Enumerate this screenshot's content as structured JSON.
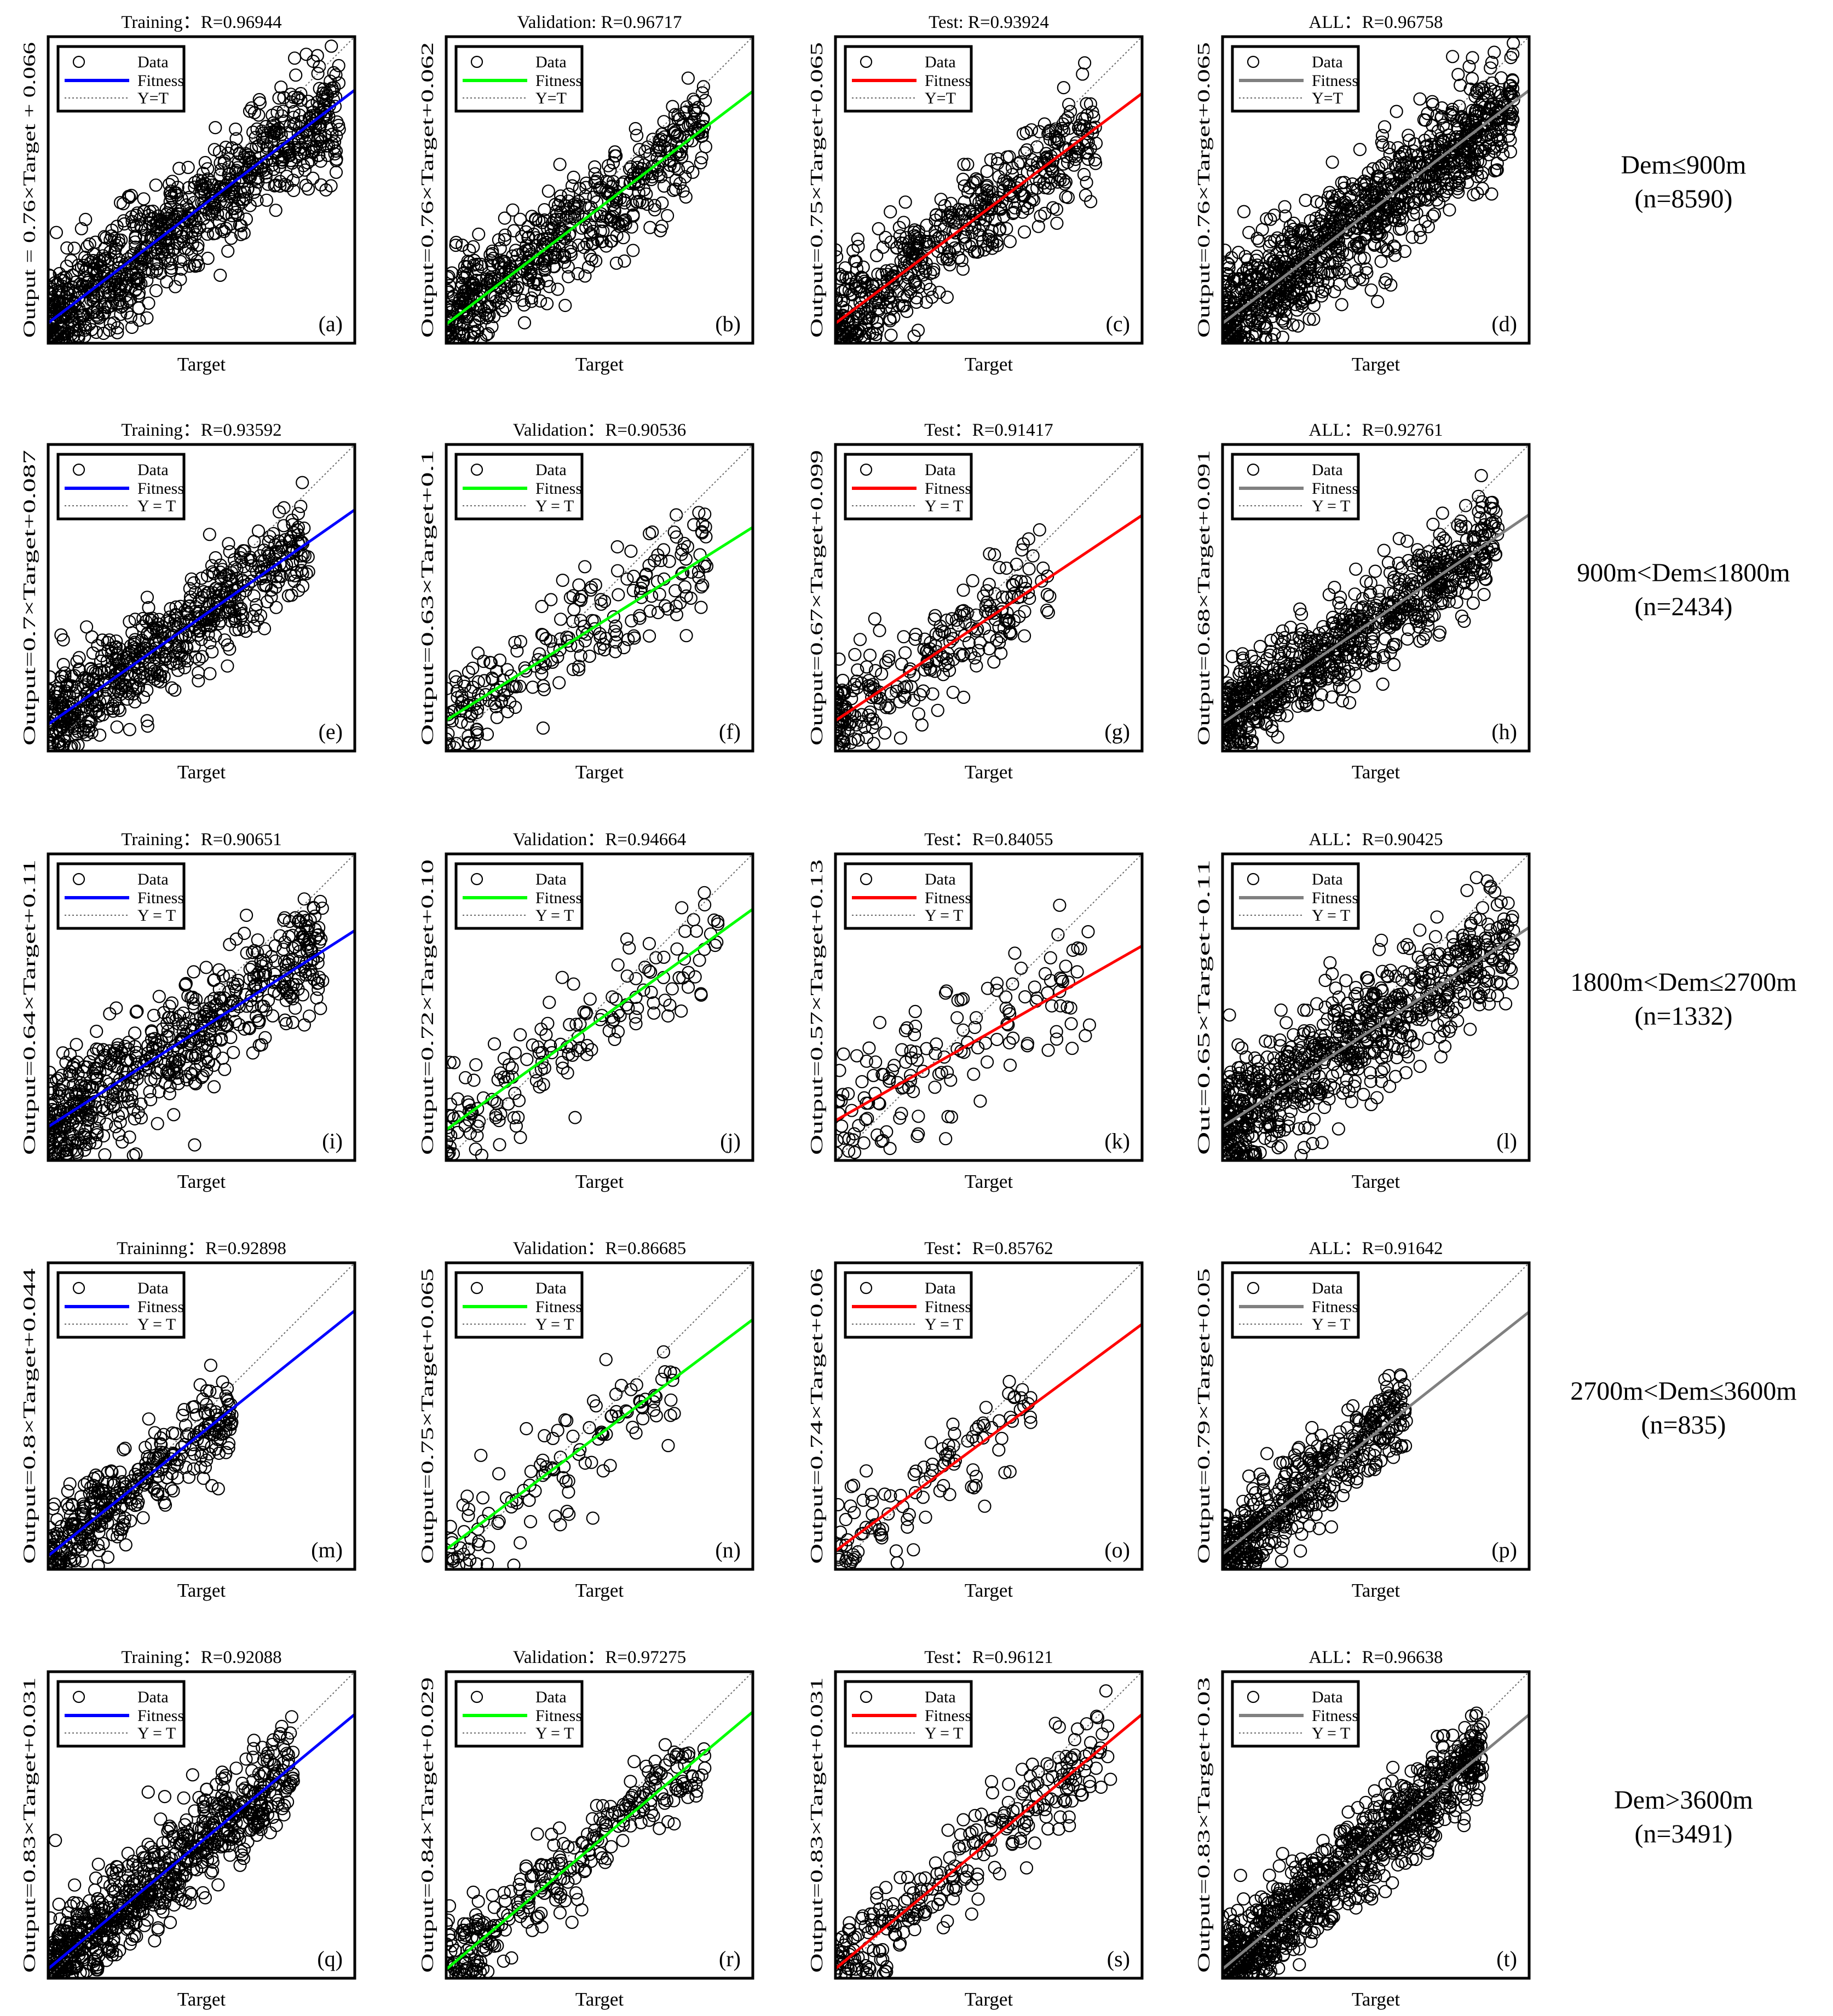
{
  "colors": {
    "training": "#0000ff",
    "validation": "#00ff00",
    "test": "#ff0000",
    "all": "#808080",
    "data_marker": "#000000",
    "identity_line": "#666666"
  },
  "legend": {
    "data": "Data",
    "fitness": "Fitness",
    "identity": "Y=T"
  },
  "rows": [
    {
      "label": "Dem≤900m",
      "count": "(n=8590)"
    },
    {
      "label": "900m<Dem≤1800m",
      "count": "(n=2434)"
    },
    {
      "label": "1800m<Dem≤2700m",
      "count": "(n=1332)"
    },
    {
      "label": "2700m<Dem≤3600m",
      "count": "(n=835)"
    },
    {
      "label": "Dem>3600m",
      "count": "(n=3491)"
    }
  ],
  "chart_data": [
    {
      "type": "scatter",
      "panel": "(a)",
      "title": "Training：R=0.96944",
      "xlabel": "Target",
      "ylabel": "Output = 0.76×Target + 0.066",
      "fit_color": "#0000ff",
      "legend_identity": "Y=T",
      "fit": {
        "slope": 0.76,
        "intercept": 0.066
      },
      "R": 0.96944,
      "xlim": [
        0,
        1
      ],
      "ylim": [
        0,
        1
      ],
      "n_points": 900,
      "spread": 0.09,
      "x_range": [
        0,
        0.95
      ],
      "seed": 11
    },
    {
      "type": "scatter",
      "panel": "(b)",
      "title": "Validation: R=0.96717",
      "xlabel": "Target",
      "ylabel": "Output=0.76×Target+0.062",
      "fit_color": "#00ff00",
      "legend_identity": "Y=T",
      "fit": {
        "slope": 0.76,
        "intercept": 0.062
      },
      "R": 0.96717,
      "xlim": [
        0,
        1
      ],
      "ylim": [
        0,
        1
      ],
      "n_points": 600,
      "spread": 0.085,
      "x_range": [
        0,
        0.85
      ],
      "seed": 12
    },
    {
      "type": "scatter",
      "panel": "(c)",
      "title": "Test: R=0.93924",
      "xlabel": "Target",
      "ylabel": "Output=0.75×Target+0.065",
      "fit_color": "#ff0000",
      "legend_identity": "Y=T",
      "fit": {
        "slope": 0.75,
        "intercept": 0.065
      },
      "R": 0.93924,
      "xlim": [
        0,
        1
      ],
      "ylim": [
        0,
        1
      ],
      "n_points": 550,
      "spread": 0.09,
      "x_range": [
        0,
        0.85
      ],
      "seed": 13
    },
    {
      "type": "scatter",
      "panel": "(d)",
      "title": "ALL：R=0.96758",
      "xlabel": "Target",
      "ylabel": "Output=0.76×Target+0.065",
      "fit_color": "#808080",
      "legend_identity": "Y=T",
      "fit": {
        "slope": 0.76,
        "intercept": 0.065
      },
      "R": 0.96758,
      "xlim": [
        0,
        1
      ],
      "ylim": [
        0,
        1
      ],
      "n_points": 1100,
      "spread": 0.09,
      "x_range": [
        0,
        0.95
      ],
      "seed": 14
    },
    {
      "type": "scatter",
      "panel": "(e)",
      "title": "Training：R=0.93592",
      "xlabel": "Target",
      "ylabel": "Output=0.7×Target+0.087",
      "fit_color": "#0000ff",
      "legend_identity": "Y = T",
      "fit": {
        "slope": 0.7,
        "intercept": 0.087
      },
      "R": 0.93592,
      "xlim": [
        0,
        1
      ],
      "ylim": [
        0,
        1
      ],
      "n_points": 650,
      "spread": 0.08,
      "x_range": [
        0,
        0.85
      ],
      "seed": 21
    },
    {
      "type": "scatter",
      "panel": "(f)",
      "title": "Validation：R=0.90536",
      "xlabel": "Target",
      "ylabel": "Output=0.63×Target+0.1",
      "fit_color": "#00ff00",
      "legend_identity": "Y = T",
      "fit": {
        "slope": 0.63,
        "intercept": 0.1
      },
      "R": 0.90536,
      "xlim": [
        0,
        1
      ],
      "ylim": [
        0,
        1
      ],
      "n_points": 230,
      "spread": 0.08,
      "x_range": [
        0,
        0.85
      ],
      "seed": 22
    },
    {
      "type": "scatter",
      "panel": "(g)",
      "title": "Test：R=0.91417",
      "xlabel": "Target",
      "ylabel": "Output=0.67×Target+0.099",
      "fit_color": "#ff0000",
      "legend_identity": "Y = T",
      "fit": {
        "slope": 0.67,
        "intercept": 0.099
      },
      "R": 0.91417,
      "xlim": [
        0,
        1
      ],
      "ylim": [
        0,
        1
      ],
      "n_points": 260,
      "spread": 0.08,
      "x_range": [
        0,
        0.7
      ],
      "seed": 23
    },
    {
      "type": "scatter",
      "panel": "(h)",
      "title": "ALL：R=0.92761",
      "xlabel": "Target",
      "ylabel": "Output=0.68×Target+0.091",
      "fit_color": "#808080",
      "legend_identity": "Y = T",
      "fit": {
        "slope": 0.68,
        "intercept": 0.091
      },
      "R": 0.92761,
      "xlim": [
        0,
        1
      ],
      "ylim": [
        0,
        1
      ],
      "n_points": 800,
      "spread": 0.08,
      "x_range": [
        0,
        0.9
      ],
      "seed": 24
    },
    {
      "type": "scatter",
      "panel": "(i)",
      "title": "Training：R=0.90651",
      "xlabel": "Target",
      "ylabel": "Output=0.64×Target+0.11",
      "fit_color": "#0000ff",
      "legend_identity": "Y = T",
      "fit": {
        "slope": 0.64,
        "intercept": 0.11
      },
      "R": 0.90651,
      "xlim": [
        0,
        1
      ],
      "ylim": [
        0,
        1
      ],
      "n_points": 650,
      "spread": 0.1,
      "x_range": [
        0,
        0.9
      ],
      "seed": 31
    },
    {
      "type": "scatter",
      "panel": "(j)",
      "title": "Validation：R=0.94664",
      "xlabel": "Target",
      "ylabel": "Output=0.72×Target+0.10",
      "fit_color": "#00ff00",
      "legend_identity": "Y = T",
      "fit": {
        "slope": 0.72,
        "intercept": 0.1
      },
      "R": 0.94664,
      "xlim": [
        0,
        1
      ],
      "ylim": [
        0,
        1
      ],
      "n_points": 170,
      "spread": 0.09,
      "x_range": [
        0,
        0.9
      ],
      "seed": 32
    },
    {
      "type": "scatter",
      "panel": "(k)",
      "title": "Test：R=0.84055",
      "xlabel": "Target",
      "ylabel": "Output=0.57×Target+0.13",
      "fit_color": "#ff0000",
      "legend_identity": "Y = T",
      "fit": {
        "slope": 0.57,
        "intercept": 0.13
      },
      "R": 0.84055,
      "xlim": [
        0,
        1
      ],
      "ylim": [
        0,
        1
      ],
      "n_points": 150,
      "spread": 0.11,
      "x_range": [
        0,
        0.85
      ],
      "seed": 33
    },
    {
      "type": "scatter",
      "panel": "(l)",
      "title": "ALL：R=0.90425",
      "xlabel": "Target",
      "ylabel": "Out=0.65×Target+0.11",
      "fit_color": "#808080",
      "legend_identity": "Y = T",
      "fit": {
        "slope": 0.65,
        "intercept": 0.11
      },
      "R": 0.90425,
      "xlim": [
        0,
        1
      ],
      "ylim": [
        0,
        1
      ],
      "n_points": 800,
      "spread": 0.1,
      "x_range": [
        0,
        0.95
      ],
      "seed": 34
    },
    {
      "type": "scatter",
      "panel": "(m)",
      "title": "Traininng：R=0.92898",
      "xlabel": "Target",
      "ylabel": "Output=0.8×Target+0.044",
      "fit_color": "#0000ff",
      "legend_identity": "Y = T",
      "fit": {
        "slope": 0.8,
        "intercept": 0.044
      },
      "R": 0.92898,
      "xlim": [
        0,
        1
      ],
      "ylim": [
        0,
        1
      ],
      "n_points": 380,
      "spread": 0.07,
      "x_range": [
        0,
        0.6
      ],
      "seed": 41
    },
    {
      "type": "scatter",
      "panel": "(n)",
      "title": "Validation：R=0.86685",
      "xlabel": "Target",
      "ylabel": "Output=0.75×Target+0.065",
      "fit_color": "#00ff00",
      "legend_identity": "Y = T",
      "fit": {
        "slope": 0.75,
        "intercept": 0.065
      },
      "R": 0.86685,
      "xlim": [
        0,
        1
      ],
      "ylim": [
        0,
        1
      ],
      "n_points": 120,
      "spread": 0.09,
      "x_range": [
        0,
        0.75
      ],
      "seed": 42
    },
    {
      "type": "scatter",
      "panel": "(o)",
      "title": "Test：R=0.85762",
      "xlabel": "Target",
      "ylabel": "Output=0.74×Target+0.06",
      "fit_color": "#ff0000",
      "legend_identity": "Y = T",
      "fit": {
        "slope": 0.74,
        "intercept": 0.06
      },
      "R": 0.85762,
      "xlim": [
        0,
        1
      ],
      "ylim": [
        0,
        1
      ],
      "n_points": 110,
      "spread": 0.08,
      "x_range": [
        0,
        0.65
      ],
      "seed": 43
    },
    {
      "type": "scatter",
      "panel": "(p)",
      "title": "ALL：R=0.91642",
      "xlabel": "Target",
      "ylabel": "Output=0.79×Target+0.05",
      "fit_color": "#808080",
      "legend_identity": "Y = T",
      "fit": {
        "slope": 0.79,
        "intercept": 0.05
      },
      "R": 0.91642,
      "xlim": [
        0,
        1
      ],
      "ylim": [
        0,
        1
      ],
      "n_points": 480,
      "spread": 0.075,
      "x_range": [
        0,
        0.6
      ],
      "seed": 44
    },
    {
      "type": "scatter",
      "panel": "(q)",
      "title": "Training：R=0.92088",
      "xlabel": "Target",
      "ylabel": "Output=0.83×Target+0.031",
      "fit_color": "#0000ff",
      "legend_identity": "Y = T",
      "fit": {
        "slope": 0.83,
        "intercept": 0.031
      },
      "R": 0.92088,
      "xlim": [
        0,
        1
      ],
      "ylim": [
        0,
        1
      ],
      "n_points": 750,
      "spread": 0.08,
      "x_range": [
        0,
        0.8
      ],
      "seed": 51
    },
    {
      "type": "scatter",
      "panel": "(r)",
      "title": "Validation：R=0.97275",
      "xlabel": "Target",
      "ylabel": "Output=0.84×Target+0.029",
      "fit_color": "#00ff00",
      "legend_identity": "Y = T",
      "fit": {
        "slope": 0.84,
        "intercept": 0.029
      },
      "R": 0.97275,
      "xlim": [
        0,
        1
      ],
      "ylim": [
        0,
        1
      ],
      "n_points": 300,
      "spread": 0.07,
      "x_range": [
        0,
        0.85
      ],
      "seed": 52
    },
    {
      "type": "scatter",
      "panel": "(s)",
      "title": "Test：R=0.96121",
      "xlabel": "Target",
      "ylabel": "Output=0.83×Target+0.031",
      "fit_color": "#ff0000",
      "legend_identity": "Y = T",
      "fit": {
        "slope": 0.83,
        "intercept": 0.031
      },
      "R": 0.96121,
      "xlim": [
        0,
        1
      ],
      "ylim": [
        0,
        1
      ],
      "n_points": 280,
      "spread": 0.075,
      "x_range": [
        0,
        0.9
      ],
      "seed": 53
    },
    {
      "type": "scatter",
      "panel": "(t)",
      "title": "ALL：R=0.96638",
      "xlabel": "Target",
      "ylabel": "Output=0.83×Target+0.03",
      "fit_color": "#808080",
      "legend_identity": "Y = T",
      "fit": {
        "slope": 0.83,
        "intercept": 0.03
      },
      "R": 0.96638,
      "xlim": [
        0,
        1
      ],
      "ylim": [
        0,
        1
      ],
      "n_points": 900,
      "spread": 0.075,
      "x_range": [
        0,
        0.85
      ],
      "seed": 54
    }
  ]
}
